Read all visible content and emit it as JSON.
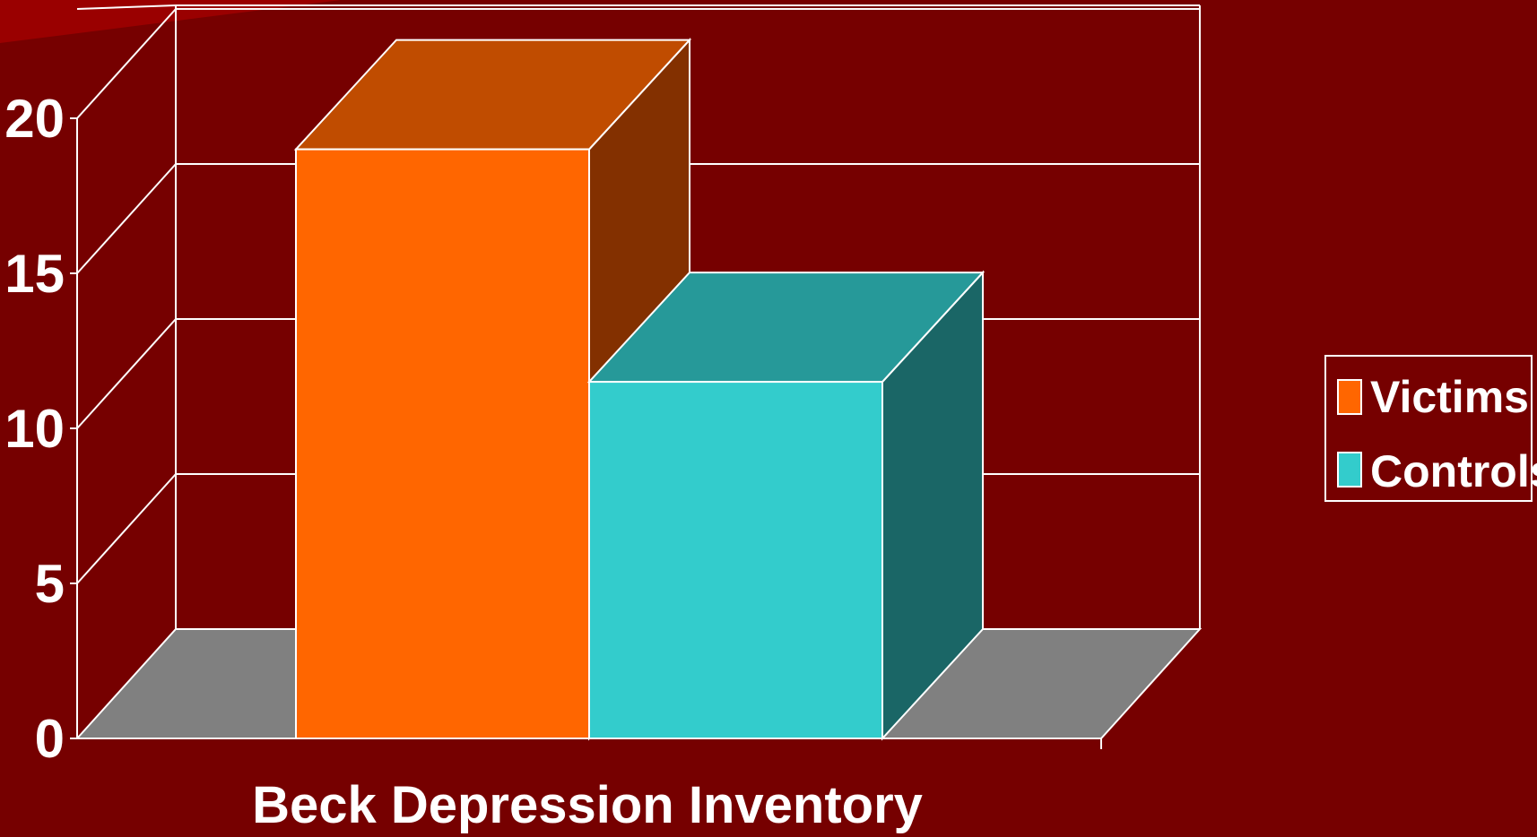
{
  "colors": {
    "background": "#760000",
    "floor": "#808080",
    "grid": "#ffffff"
  },
  "chart_data": {
    "type": "bar",
    "categories": [
      "Beck Depression Inventory"
    ],
    "xlabel": "Beck Depression Inventory",
    "ylim": [
      0,
      20
    ],
    "yticks": [
      "0",
      "5",
      "10",
      "15",
      "20"
    ],
    "grid": true,
    "legend_position": "right",
    "series": [
      {
        "name": "Victims",
        "values": [
          19
        ],
        "color": "#ff6600",
        "top_color": "#c04c00",
        "side_color": "#833000"
      },
      {
        "name": "Controls",
        "values": [
          11.5
        ],
        "color": "#33cccc",
        "top_color": "#269999",
        "side_color": "#1a6666"
      }
    ]
  }
}
